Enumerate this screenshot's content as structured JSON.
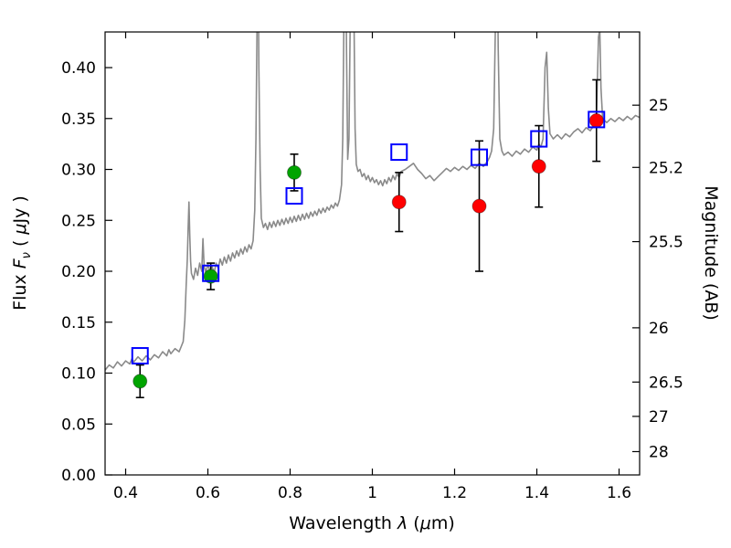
{
  "chart_data": {
    "type": "line+scatter",
    "title": "",
    "xlabel": "Wavelength λ (μm)",
    "ylabel": "Flux Fν ( μJy )",
    "y2label": "Magnitude (AB)",
    "xlim": [
      0.35,
      1.65
    ],
    "ylim": [
      0,
      0.435
    ],
    "grid": false,
    "legend": "none",
    "xlabel_parts": [
      {
        "t": "Wavelength "
      },
      {
        "t": "λ",
        "i": 1
      },
      {
        "t": " ("
      },
      {
        "t": "μ",
        "i": 1
      },
      {
        "t": "m)"
      }
    ],
    "ylabel_parts": [
      {
        "t": "Flux "
      },
      {
        "t": "F",
        "i": 1
      },
      {
        "t": "ν",
        "i": 1,
        "s": 1
      },
      {
        "t": " ( "
      },
      {
        "t": "μ",
        "i": 1
      },
      {
        "t": "Jy )"
      }
    ],
    "x_ticks": [
      {
        "v": 0.4,
        "label": "0.4"
      },
      {
        "v": 0.6,
        "label": "0.6"
      },
      {
        "v": 0.8,
        "label": "0.8"
      },
      {
        "v": 1,
        "label": "1"
      },
      {
        "v": 1.2,
        "label": "1.2"
      },
      {
        "v": 1.4,
        "label": "1.4"
      },
      {
        "v": 1.6,
        "label": "1.6"
      }
    ],
    "y_ticks": [
      {
        "v": 0,
        "label": "0.00"
      },
      {
        "v": 0.05,
        "label": "0.05"
      },
      {
        "v": 0.1,
        "label": "0.10"
      },
      {
        "v": 0.15,
        "label": "0.15"
      },
      {
        "v": 0.2,
        "label": "0.20"
      },
      {
        "v": 0.25,
        "label": "0.25"
      },
      {
        "v": 0.3,
        "label": "0.30"
      },
      {
        "v": 0.35,
        "label": "0.35"
      },
      {
        "v": 0.4,
        "label": "0.40"
      }
    ],
    "y2_ticks": [
      {
        "v": 0.3631,
        "label": "25"
      },
      {
        "v": 0.302,
        "label": "25.2"
      },
      {
        "v": 0.2291,
        "label": "25.5"
      },
      {
        "v": 0.1445,
        "label": "26"
      },
      {
        "v": 0.0912,
        "label": "26.5"
      },
      {
        "v": 0.0575,
        "label": "27"
      },
      {
        "v": 0.0229,
        "label": "28"
      }
    ],
    "colors": {
      "spectrum": "#8a8a8a",
      "frame": "#000000",
      "error_bar": "#000000"
    },
    "series": [
      {
        "name": "green-photometry",
        "marker": "filled-circle",
        "color": "#00a400",
        "points": [
          [
            0.435,
            0.092
          ],
          [
            0.607,
            0.195
          ],
          [
            0.81,
            0.297
          ]
        ],
        "yerr": [
          0.016,
          0.013,
          0.018
        ]
      },
      {
        "name": "red-photometry",
        "marker": "filled-circle",
        "color": "#ff0000",
        "points": [
          [
            1.065,
            0.268
          ],
          [
            1.26,
            0.264
          ],
          [
            1.405,
            0.303
          ],
          [
            1.545,
            0.348
          ]
        ],
        "yerr": [
          0.029,
          0.064,
          0.04,
          0.04
        ]
      },
      {
        "name": "model-photometry",
        "marker": "open-square",
        "color": "#0000ff",
        "points": [
          [
            0.435,
            0.117
          ],
          [
            0.607,
            0.198
          ],
          [
            0.81,
            0.274
          ],
          [
            1.065,
            0.317
          ],
          [
            1.26,
            0.312
          ],
          [
            1.405,
            0.33
          ],
          [
            1.545,
            0.349
          ]
        ],
        "yerr": null
      }
    ],
    "spectrum": [
      [
        0.35,
        0.103
      ],
      [
        0.36,
        0.108
      ],
      [
        0.37,
        0.105
      ],
      [
        0.38,
        0.111
      ],
      [
        0.39,
        0.107
      ],
      [
        0.4,
        0.112
      ],
      [
        0.41,
        0.109
      ],
      [
        0.415,
        0.114
      ],
      [
        0.42,
        0.111
      ],
      [
        0.43,
        0.116
      ],
      [
        0.44,
        0.112
      ],
      [
        0.45,
        0.117
      ],
      [
        0.46,
        0.113
      ],
      [
        0.47,
        0.118
      ],
      [
        0.48,
        0.115
      ],
      [
        0.49,
        0.121
      ],
      [
        0.5,
        0.117
      ],
      [
        0.505,
        0.123
      ],
      [
        0.51,
        0.119
      ],
      [
        0.52,
        0.124
      ],
      [
        0.53,
        0.121
      ],
      [
        0.535,
        0.126
      ],
      [
        0.54,
        0.131
      ],
      [
        0.544,
        0.152
      ],
      [
        0.547,
        0.185
      ],
      [
        0.55,
        0.212
      ],
      [
        0.552,
        0.242
      ],
      [
        0.554,
        0.268
      ],
      [
        0.556,
        0.235
      ],
      [
        0.558,
        0.21
      ],
      [
        0.56,
        0.198
      ],
      [
        0.565,
        0.192
      ],
      [
        0.57,
        0.203
      ],
      [
        0.575,
        0.196
      ],
      [
        0.58,
        0.208
      ],
      [
        0.585,
        0.2
      ],
      [
        0.588,
        0.232
      ],
      [
        0.591,
        0.205
      ],
      [
        0.595,
        0.199
      ],
      [
        0.6,
        0.207
      ],
      [
        0.605,
        0.199
      ],
      [
        0.61,
        0.205
      ],
      [
        0.615,
        0.198
      ],
      [
        0.62,
        0.208
      ],
      [
        0.625,
        0.203
      ],
      [
        0.63,
        0.212
      ],
      [
        0.635,
        0.206
      ],
      [
        0.64,
        0.214
      ],
      [
        0.645,
        0.208
      ],
      [
        0.65,
        0.216
      ],
      [
        0.655,
        0.21
      ],
      [
        0.66,
        0.218
      ],
      [
        0.665,
        0.213
      ],
      [
        0.67,
        0.22
      ],
      [
        0.675,
        0.215
      ],
      [
        0.68,
        0.222
      ],
      [
        0.685,
        0.217
      ],
      [
        0.69,
        0.224
      ],
      [
        0.695,
        0.219
      ],
      [
        0.7,
        0.226
      ],
      [
        0.705,
        0.222
      ],
      [
        0.71,
        0.23
      ],
      [
        0.714,
        0.26
      ],
      [
        0.717,
        0.33
      ],
      [
        0.72,
        0.46
      ],
      [
        0.722,
        0.52
      ],
      [
        0.724,
        0.4
      ],
      [
        0.727,
        0.3
      ],
      [
        0.73,
        0.252
      ],
      [
        0.735,
        0.243
      ],
      [
        0.74,
        0.247
      ],
      [
        0.745,
        0.241
      ],
      [
        0.75,
        0.248
      ],
      [
        0.755,
        0.243
      ],
      [
        0.76,
        0.249
      ],
      [
        0.765,
        0.244
      ],
      [
        0.77,
        0.25
      ],
      [
        0.775,
        0.245
      ],
      [
        0.78,
        0.251
      ],
      [
        0.785,
        0.246
      ],
      [
        0.79,
        0.252
      ],
      [
        0.795,
        0.247
      ],
      [
        0.8,
        0.253
      ],
      [
        0.805,
        0.248
      ],
      [
        0.81,
        0.254
      ],
      [
        0.815,
        0.249
      ],
      [
        0.82,
        0.255
      ],
      [
        0.825,
        0.25
      ],
      [
        0.83,
        0.256
      ],
      [
        0.835,
        0.251
      ],
      [
        0.84,
        0.257
      ],
      [
        0.845,
        0.252
      ],
      [
        0.85,
        0.258
      ],
      [
        0.855,
        0.254
      ],
      [
        0.86,
        0.259
      ],
      [
        0.865,
        0.255
      ],
      [
        0.87,
        0.261
      ],
      [
        0.875,
        0.257
      ],
      [
        0.88,
        0.262
      ],
      [
        0.885,
        0.258
      ],
      [
        0.89,
        0.263
      ],
      [
        0.895,
        0.26
      ],
      [
        0.9,
        0.265
      ],
      [
        0.905,
        0.262
      ],
      [
        0.91,
        0.267
      ],
      [
        0.915,
        0.264
      ],
      [
        0.92,
        0.27
      ],
      [
        0.925,
        0.285
      ],
      [
        0.928,
        0.33
      ],
      [
        0.931,
        0.46
      ],
      [
        0.934,
        0.58
      ],
      [
        0.937,
        0.42
      ],
      [
        0.94,
        0.31
      ],
      [
        0.943,
        0.33
      ],
      [
        0.946,
        0.44
      ],
      [
        0.949,
        0.58
      ],
      [
        0.952,
        0.6
      ],
      [
        0.955,
        0.46
      ],
      [
        0.958,
        0.34
      ],
      [
        0.961,
        0.305
      ],
      [
        0.965,
        0.298
      ],
      [
        0.97,
        0.3
      ],
      [
        0.975,
        0.293
      ],
      [
        0.98,
        0.296
      ],
      [
        0.985,
        0.29
      ],
      [
        0.99,
        0.294
      ],
      [
        0.995,
        0.288
      ],
      [
        1.0,
        0.292
      ],
      [
        1.005,
        0.287
      ],
      [
        1.01,
        0.29
      ],
      [
        1.015,
        0.285
      ],
      [
        1.02,
        0.289
      ],
      [
        1.025,
        0.284
      ],
      [
        1.03,
        0.29
      ],
      [
        1.035,
        0.286
      ],
      [
        1.04,
        0.292
      ],
      [
        1.045,
        0.288
      ],
      [
        1.05,
        0.294
      ],
      [
        1.055,
        0.29
      ],
      [
        1.06,
        0.296
      ],
      [
        1.065,
        0.292
      ],
      [
        1.07,
        0.298
      ],
      [
        1.08,
        0.3
      ],
      [
        1.09,
        0.303
      ],
      [
        1.1,
        0.306
      ],
      [
        1.11,
        0.3
      ],
      [
        1.12,
        0.296
      ],
      [
        1.13,
        0.291
      ],
      [
        1.14,
        0.294
      ],
      [
        1.15,
        0.289
      ],
      [
        1.16,
        0.293
      ],
      [
        1.17,
        0.297
      ],
      [
        1.18,
        0.301
      ],
      [
        1.19,
        0.298
      ],
      [
        1.2,
        0.302
      ],
      [
        1.21,
        0.299
      ],
      [
        1.22,
        0.303
      ],
      [
        1.23,
        0.3
      ],
      [
        1.24,
        0.304
      ],
      [
        1.25,
        0.301
      ],
      [
        1.26,
        0.306
      ],
      [
        1.27,
        0.303
      ],
      [
        1.28,
        0.308
      ],
      [
        1.285,
        0.312
      ],
      [
        1.29,
        0.318
      ],
      [
        1.295,
        0.34
      ],
      [
        1.3,
        0.46
      ],
      [
        1.303,
        0.55
      ],
      [
        1.306,
        0.42
      ],
      [
        1.31,
        0.33
      ],
      [
        1.315,
        0.318
      ],
      [
        1.32,
        0.314
      ],
      [
        1.33,
        0.317
      ],
      [
        1.34,
        0.313
      ],
      [
        1.35,
        0.318
      ],
      [
        1.36,
        0.315
      ],
      [
        1.37,
        0.32
      ],
      [
        1.38,
        0.317
      ],
      [
        1.39,
        0.322
      ],
      [
        1.4,
        0.319
      ],
      [
        1.405,
        0.325
      ],
      [
        1.41,
        0.322
      ],
      [
        1.415,
        0.33
      ],
      [
        1.42,
        0.4
      ],
      [
        1.424,
        0.415
      ],
      [
        1.428,
        0.36
      ],
      [
        1.432,
        0.335
      ],
      [
        1.44,
        0.33
      ],
      [
        1.45,
        0.334
      ],
      [
        1.46,
        0.33
      ],
      [
        1.47,
        0.335
      ],
      [
        1.48,
        0.332
      ],
      [
        1.49,
        0.337
      ],
      [
        1.5,
        0.34
      ],
      [
        1.51,
        0.336
      ],
      [
        1.52,
        0.341
      ],
      [
        1.53,
        0.338
      ],
      [
        1.54,
        0.344
      ],
      [
        1.545,
        0.355
      ],
      [
        1.55,
        0.43
      ],
      [
        1.553,
        0.438
      ],
      [
        1.556,
        0.38
      ],
      [
        1.56,
        0.35
      ],
      [
        1.57,
        0.346
      ],
      [
        1.58,
        0.35
      ],
      [
        1.59,
        0.347
      ],
      [
        1.6,
        0.351
      ],
      [
        1.61,
        0.348
      ],
      [
        1.62,
        0.352
      ],
      [
        1.63,
        0.349
      ],
      [
        1.64,
        0.353
      ],
      [
        1.65,
        0.351
      ]
    ]
  }
}
